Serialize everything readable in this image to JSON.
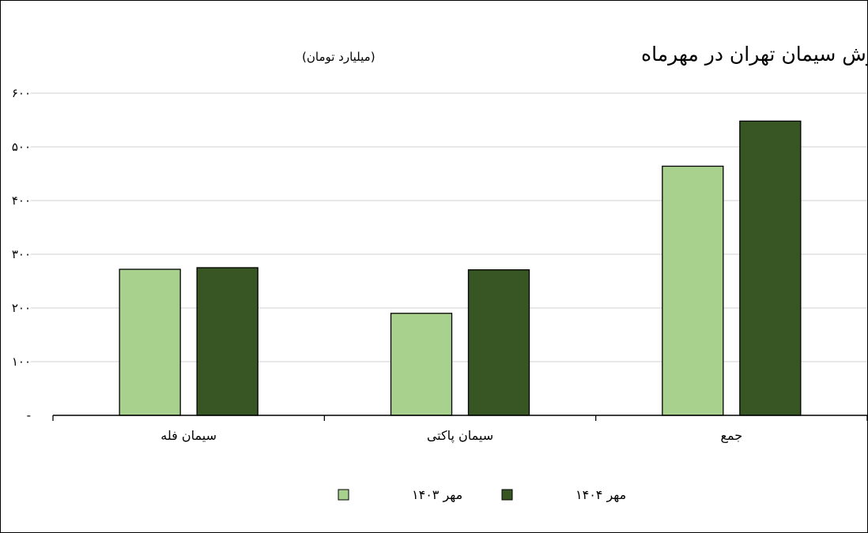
{
  "chart_data": {
    "type": "bar",
    "title": "درآمد فروش سیمان تهران در مهرماه",
    "subtitle": "(میلیارد تومان)",
    "categories": [
      "سیمان فله",
      "سیمان پاکتی",
      "جمع"
    ],
    "series": [
      {
        "name": "مهر ۱۴۰۳",
        "values": [
          272,
          190,
          464
        ],
        "color": "#a9d18e"
      },
      {
        "name": "مهر ۱۴۰۴",
        "values": [
          275,
          271,
          548
        ],
        "color": "#375623"
      }
    ],
    "yticks": [
      "-",
      "۱۰۰",
      "۲۰۰",
      "۳۰۰",
      "۴۰۰",
      "۵۰۰",
      "۶۰۰"
    ],
    "ylim": [
      0,
      600
    ],
    "grid": true,
    "legend_position": "bottom"
  }
}
